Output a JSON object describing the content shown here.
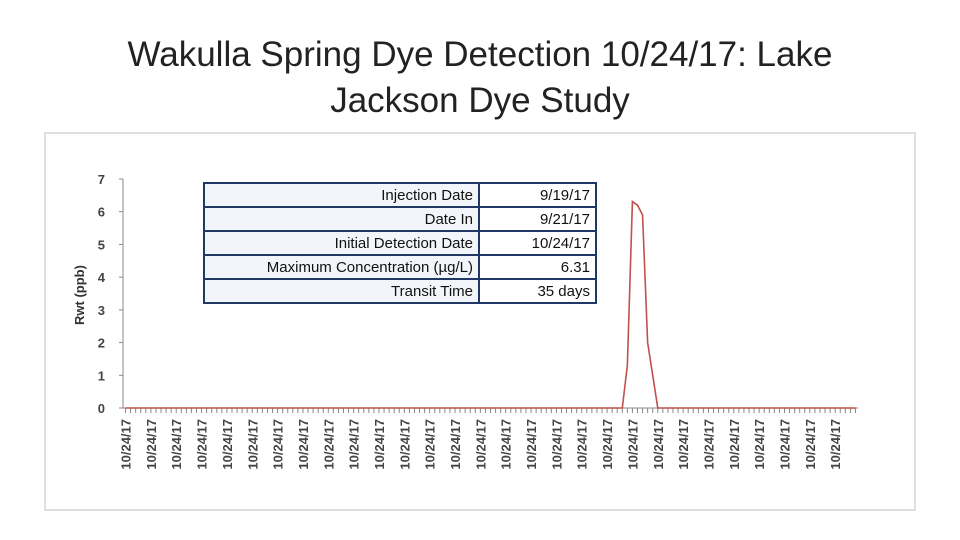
{
  "title": "Wakulla Spring Dye Detection 10/24/17: Lake Jackson Dye Study",
  "table": {
    "rows": [
      [
        "Injection Date",
        "9/19/17"
      ],
      [
        "Date In",
        "9/21/17"
      ],
      [
        "Initial Detection Date",
        "10/24/17"
      ],
      [
        "Maximum Concentration (µg/L)",
        "6.31"
      ],
      [
        "Transit Time",
        "35 days"
      ]
    ]
  },
  "chart_data": {
    "type": "line",
    "y_label": "Rwt (ppb)",
    "color": "#c0504d",
    "ylim": [
      0,
      7
    ],
    "yticks": [
      0,
      1,
      2,
      3,
      4,
      5,
      6,
      7
    ],
    "categories": [
      "10/24/17",
      null,
      null,
      null,
      null,
      "10/24/17",
      null,
      null,
      null,
      null,
      "10/24/17",
      null,
      null,
      null,
      null,
      "10/24/17",
      null,
      null,
      null,
      null,
      "10/24/17",
      null,
      null,
      null,
      null,
      "10/24/17",
      null,
      null,
      null,
      null,
      "10/24/17",
      null,
      null,
      null,
      null,
      "10/24/17",
      null,
      null,
      null,
      null,
      "10/24/17",
      null,
      null,
      null,
      null,
      "10/24/17",
      null,
      null,
      null,
      null,
      "10/24/17",
      null,
      null,
      null,
      null,
      "10/24/17",
      null,
      null,
      null,
      null,
      "10/24/17",
      null,
      null,
      null,
      null,
      "10/24/17",
      null,
      null,
      null,
      null,
      "10/24/17",
      null,
      null,
      null,
      null,
      "10/24/17",
      null,
      null,
      null,
      null,
      "10/24/17",
      null,
      null,
      null,
      null,
      "10/24/17",
      null,
      null,
      null,
      null,
      "10/24/17",
      null,
      null,
      null,
      null,
      "10/24/17",
      null,
      null,
      null,
      null,
      "10/24/17",
      null,
      null,
      null,
      null,
      "10/24/17",
      null,
      null,
      null,
      null,
      "10/24/17",
      null,
      null,
      null,
      null,
      "10/24/17",
      null,
      null,
      null,
      null,
      "10/24/17",
      null,
      null,
      null,
      null,
      "10/24/17",
      null,
      null,
      null,
      null,
      "10/24/17",
      null,
      null,
      null,
      null,
      "10/24/17",
      null,
      null,
      null,
      null,
      "10/24/17",
      null,
      null,
      null,
      null
    ],
    "values": [
      0,
      0,
      0,
      0,
      0,
      0,
      0,
      0,
      0,
      0,
      0,
      0,
      0,
      0,
      0,
      0,
      0,
      0,
      0,
      0,
      0,
      0,
      0,
      0,
      0,
      0,
      0,
      0,
      0,
      0,
      0,
      0,
      0,
      0,
      0,
      0,
      0,
      0,
      0,
      0,
      0,
      0,
      0,
      0,
      0,
      0,
      0,
      0,
      0,
      0,
      0,
      0,
      0,
      0,
      0,
      0,
      0,
      0,
      0,
      0,
      0,
      0,
      0,
      0,
      0,
      0,
      0,
      0,
      0,
      0,
      0,
      0,
      0,
      0,
      0,
      0,
      0,
      0,
      0,
      0,
      0,
      0,
      0,
      0,
      0,
      0,
      0,
      0,
      0,
      0,
      0,
      0,
      0,
      0,
      0,
      0,
      0,
      0,
      0,
      1.3,
      6.31,
      6.2,
      5.9,
      2.0,
      1.0,
      0,
      0,
      0,
      0,
      0,
      0,
      0,
      0,
      0,
      0,
      0,
      0,
      0,
      0,
      0,
      0,
      0,
      0,
      0,
      0,
      0,
      0,
      0,
      0,
      0,
      0,
      0,
      0,
      0,
      0,
      0,
      0,
      0,
      0,
      0,
      0,
      0,
      0,
      0,
      0
    ]
  }
}
